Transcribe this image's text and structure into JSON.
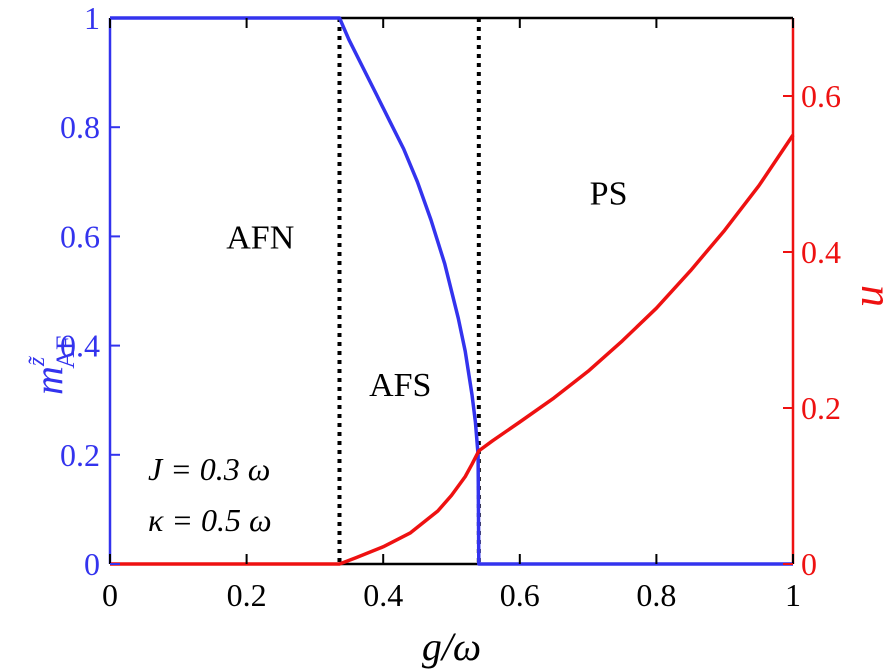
{
  "colors": {
    "left_axis": "#3333ee",
    "right_axis": "#ee1111",
    "frame": "#000000",
    "divider": "#000000"
  },
  "chart_data": {
    "type": "line",
    "xlabel": "g/ω",
    "ylabel_left": {
      "base": "m",
      "sup": "z̃",
      "sub": "AF"
    },
    "ylabel_right": "n",
    "xlim": [
      0,
      1
    ],
    "ylim_left": [
      0,
      1
    ],
    "ylim_right": [
      0,
      0.7
    ],
    "x_ticks": [
      "0",
      "0.2",
      "0.4",
      "0.6",
      "0.8",
      "1"
    ],
    "y_left_ticks": [
      "0",
      "0.2",
      "0.4",
      "0.6",
      "0.8",
      "1"
    ],
    "y_right_ticks": [
      "0",
      "0.2",
      "0.4",
      "0.6"
    ],
    "grid": false,
    "series": [
      {
        "axis": "left",
        "color": "#3333ee",
        "x": [
          0,
          0.1,
          0.2,
          0.3,
          0.336,
          0.35,
          0.37,
          0.39,
          0.41,
          0.43,
          0.45,
          0.47,
          0.49,
          0.51,
          0.52,
          0.53,
          0.535,
          0.539,
          0.54,
          0.541,
          0.6,
          0.7,
          0.8,
          0.9,
          1.0
        ],
        "y": [
          1,
          1,
          1,
          1,
          1,
          0.96,
          0.91,
          0.86,
          0.81,
          0.76,
          0.7,
          0.63,
          0.55,
          0.45,
          0.39,
          0.31,
          0.26,
          0.2,
          0.0,
          0.0,
          0.0,
          0.0,
          0.0,
          0.0,
          0.0
        ]
      },
      {
        "axis": "right",
        "color": "#ee1111",
        "x": [
          0,
          0.1,
          0.2,
          0.3,
          0.336,
          0.36,
          0.4,
          0.44,
          0.48,
          0.5,
          0.52,
          0.53,
          0.54,
          0.56,
          0.6,
          0.65,
          0.7,
          0.75,
          0.8,
          0.85,
          0.9,
          0.95,
          1.0
        ],
        "y": [
          0,
          0,
          0,
          0,
          0,
          0.008,
          0.022,
          0.04,
          0.068,
          0.088,
          0.112,
          0.128,
          0.145,
          0.158,
          0.182,
          0.213,
          0.247,
          0.286,
          0.328,
          0.376,
          0.428,
          0.485,
          0.55
        ]
      }
    ],
    "vlines": [
      0.336,
      0.54
    ],
    "annotations": [
      {
        "text": "AFN",
        "x": 0.22,
        "y_left": 0.6
      },
      {
        "text": "PS",
        "x": 0.73,
        "y_left": 0.68
      },
      {
        "text": "AFS",
        "x": 0.425,
        "y_left": 0.33
      }
    ],
    "params": [
      "J = 0.3 ω",
      "κ = 0.5 ω"
    ]
  }
}
